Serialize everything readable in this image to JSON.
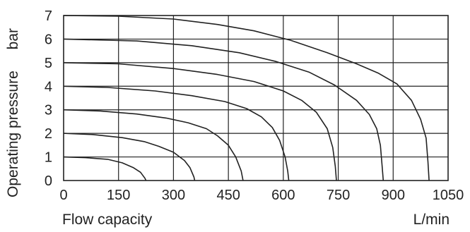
{
  "chart_data": {
    "type": "line",
    "xlabel": "Flow capacity",
    "xunit": "L/min",
    "ylabel": "Operating pressure",
    "yunit": "bar",
    "xlim": [
      0,
      1050
    ],
    "ylim": [
      0,
      7
    ],
    "xticks": [
      "0",
      "150",
      "300",
      "450",
      "600",
      "750",
      "900",
      "1050"
    ],
    "yticks": [
      "0",
      "1",
      "2",
      "3",
      "4",
      "5",
      "6",
      "7"
    ],
    "grid": true,
    "series": [
      {
        "x": [
          0,
          60,
          120,
          160,
          190,
          210,
          222,
          225
        ],
        "y": [
          1,
          0.97,
          0.9,
          0.75,
          0.55,
          0.35,
          0.1,
          0
        ]
      },
      {
        "x": [
          0,
          80,
          160,
          220,
          260,
          300,
          330,
          345,
          356,
          358
        ],
        "y": [
          2,
          1.95,
          1.82,
          1.65,
          1.45,
          1.2,
          0.85,
          0.55,
          0.15,
          0
        ]
      },
      {
        "x": [
          0,
          100,
          200,
          280,
          340,
          390,
          420,
          450,
          470,
          485,
          490
        ],
        "y": [
          3,
          2.95,
          2.82,
          2.65,
          2.45,
          2.2,
          1.9,
          1.5,
          1.0,
          0.4,
          0
        ]
      },
      {
        "x": [
          0,
          120,
          250,
          350,
          440,
          500,
          540,
          570,
          590,
          605,
          612,
          615
        ],
        "y": [
          4,
          3.95,
          3.8,
          3.6,
          3.35,
          3.05,
          2.7,
          2.25,
          1.7,
          1.0,
          0.4,
          0
        ]
      },
      {
        "x": [
          0,
          150,
          300,
          420,
          520,
          600,
          650,
          690,
          720,
          735,
          742,
          745
        ],
        "y": [
          5,
          4.95,
          4.75,
          4.5,
          4.2,
          3.8,
          3.4,
          2.9,
          2.2,
          1.4,
          0.6,
          0
        ]
      },
      {
        "x": [
          0,
          200,
          350,
          480,
          580,
          670,
          740,
          800,
          835,
          855,
          865,
          870,
          873
        ],
        "y": [
          6,
          5.92,
          5.72,
          5.42,
          5.05,
          4.6,
          4.05,
          3.4,
          2.8,
          2.2,
          1.5,
          0.6,
          0
        ]
      },
      {
        "x": [
          0,
          150,
          300,
          420,
          520,
          620,
          720,
          800,
          860,
          910,
          950,
          975,
          990,
          995,
          998
        ],
        "y": [
          7,
          6.97,
          6.85,
          6.62,
          6.35,
          5.95,
          5.42,
          4.95,
          4.55,
          4.1,
          3.4,
          2.6,
          1.8,
          0.8,
          0
        ]
      }
    ]
  }
}
